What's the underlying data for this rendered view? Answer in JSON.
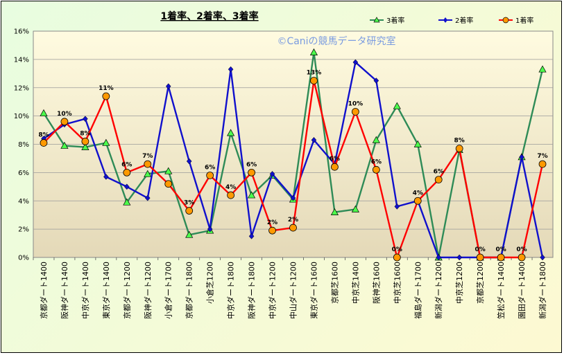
{
  "chart_data": {
    "type": "line",
    "title": "1着率、2着率、3着率",
    "watermark": "©Caniの競馬データ研究室",
    "ylim": [
      0,
      16
    ],
    "y_ticks": [
      "0%",
      "2%",
      "4%",
      "6%",
      "8%",
      "10%",
      "12%",
      "14%",
      "16%"
    ],
    "grid": true,
    "legend_position": "top-right",
    "categories": [
      "京都ダート1400",
      "阪神ダート1400",
      "中京ダート1400",
      "東京ダート1400",
      "京都ダート1200",
      "阪神ダート1200",
      "小倉ダート1700",
      "京都ダート1800",
      "小倉芝1200",
      "中京ダート1800",
      "阪神ダート1800",
      "中京ダート1200",
      "中山ダート1200",
      "東京ダート1600",
      "京都芝1600",
      "中京芝1400",
      "阪神芝1600",
      "中京芝1600",
      "福島ダート1700",
      "新潟ダート1200",
      "中京芝1200",
      "京都芝1200",
      "笠松ダート1400",
      "園田ダート1400",
      "新潟ダート1800"
    ],
    "series": [
      {
        "name": "3着率",
        "color": "#2e8b57",
        "marker": "triangle",
        "marker_fill": "#4cff4c",
        "values": [
          10.2,
          7.9,
          7.8,
          8.1,
          3.9,
          5.9,
          6.1,
          1.6,
          1.9,
          8.8,
          4.4,
          5.8,
          4.1,
          14.5,
          3.2,
          3.4,
          8.3,
          10.7,
          8.0,
          0,
          7.6,
          0,
          0,
          7.1,
          13.3
        ]
      },
      {
        "name": "2着率",
        "color": "#1010cc",
        "marker": "diamond",
        "marker_fill": "#1010cc",
        "values": [
          8.4,
          9.4,
          9.8,
          5.7,
          5.0,
          4.2,
          12.1,
          6.8,
          2.0,
          13.3,
          1.5,
          5.9,
          4.2,
          8.3,
          6.6,
          13.8,
          12.5,
          3.6,
          4.0,
          0,
          0,
          0,
          0,
          7.1,
          0
        ]
      },
      {
        "name": "1着率",
        "color": "#ff0000",
        "marker": "circle",
        "marker_fill": "#ff9900",
        "values": [
          8.1,
          9.6,
          8.2,
          11.4,
          6.0,
          6.6,
          5.2,
          3.3,
          5.8,
          4.4,
          6.0,
          1.9,
          2.1,
          12.5,
          6.4,
          10.3,
          6.2,
          0,
          4.0,
          5.5,
          7.7,
          0,
          0,
          0,
          6.6
        ],
        "data_labels": [
          "8%",
          "10%",
          "8%",
          "11%",
          "6%",
          "7%",
          "",
          "3%",
          "6%",
          "4%",
          "6%",
          "2%",
          "2%",
          "13%",
          "6%",
          "10%",
          "6%",
          "0%",
          "4%",
          "6%",
          "8%",
          "0%",
          "0%",
          "0%",
          "7%"
        ]
      }
    ]
  }
}
